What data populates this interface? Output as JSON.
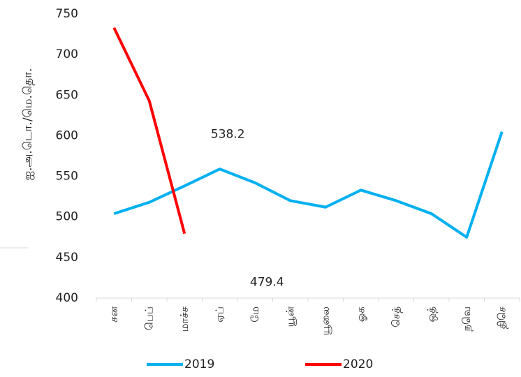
{
  "chart_data": {
    "type": "line",
    "y_label": "ஐ.அ.டொ./மெ.தொ.",
    "categories": [
      "சன",
      "பெப்",
      "மாச்ச",
      "ஏப்",
      "மே",
      "யூன்",
      "யூலை",
      "ஓக",
      "செத்",
      "ஒத்",
      "நவெ",
      "திசெ"
    ],
    "series": [
      {
        "name": "2019",
        "color": "#00b0f0",
        "values": [
          504,
          518,
          538.2,
          559,
          542,
          520,
          512,
          533,
          520,
          504,
          475,
          605
        ],
        "value_labels": [
          null,
          null,
          "538.2",
          null,
          null,
          null,
          null,
          null,
          null,
          null,
          null,
          null
        ]
      },
      {
        "name": "2020",
        "color": "#ff0000",
        "values": [
          733,
          643,
          479.4,
          null,
          null,
          null,
          null,
          null,
          null,
          null,
          null,
          null
        ],
        "value_labels": [
          null,
          null,
          "479.4",
          null,
          null,
          null,
          null,
          null,
          null,
          null,
          null,
          null
        ]
      }
    ],
    "ylim": [
      400,
      750
    ],
    "yticks": [
      400,
      450,
      500,
      550,
      600,
      650,
      700,
      750
    ],
    "grid": false,
    "legend": "bottom"
  }
}
